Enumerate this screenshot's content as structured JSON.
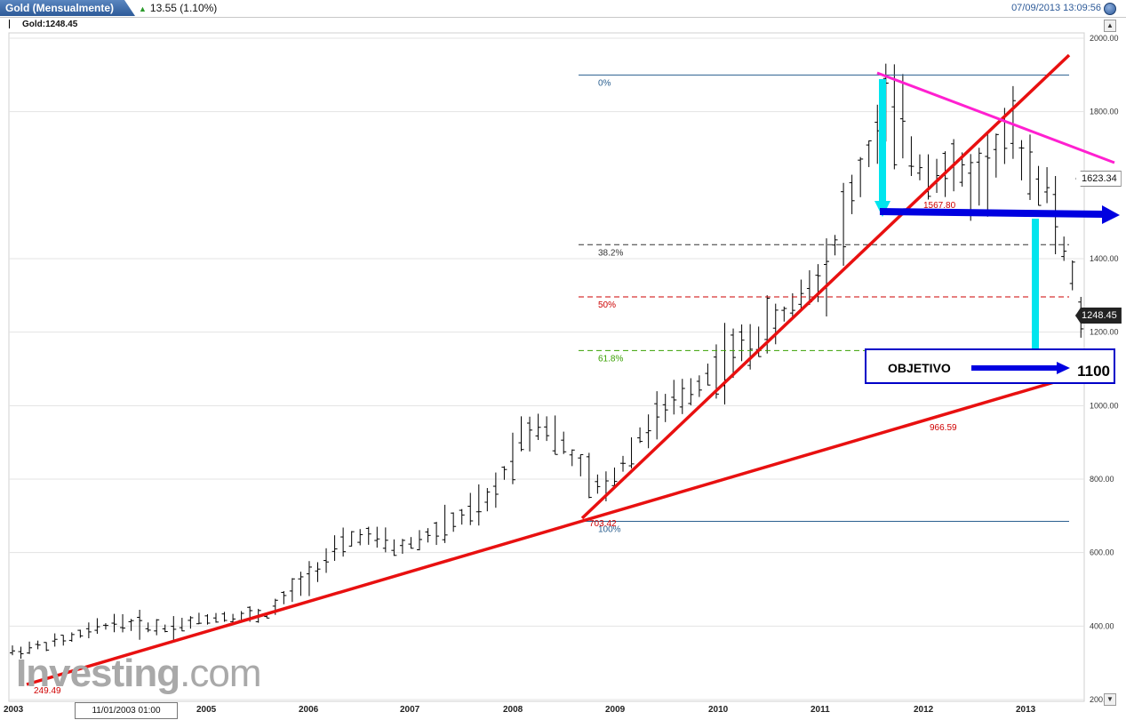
{
  "header": {
    "title": "Gold (Mensualmente)",
    "change": "13.55 (1.10%)",
    "timestamp": "07/09/2013 13:09:56",
    "legend": "Gold:1248.45"
  },
  "cursor_date": "11/01/2003 01:00",
  "watermark": {
    "bold": "Investing",
    "light": ".com"
  },
  "objective": {
    "label": "OBJETIVO",
    "value": "1100"
  },
  "price_flags": {
    "resistance": "1623.34",
    "last": "1248.45"
  },
  "colors": {
    "support_lines": "#e81010",
    "resistance_line": "#ff20d0",
    "arrows_cyan": "#00e5ee",
    "arrow_blue": "#0000e0",
    "fib_0": "#2a5f8f",
    "fib_382": "#333333",
    "fib_50": "#cc0000",
    "fib_618": "#39a000"
  },
  "chart_data": {
    "type": "ohlc",
    "title": "Gold (Mensualmente)",
    "frequency": "monthly",
    "x_axis": {
      "ticks": [
        "2003",
        "2005",
        "2006",
        "2007",
        "2008",
        "2009",
        "2010",
        "2011",
        "2012",
        "2013"
      ]
    },
    "y_axis": {
      "ticks": [
        "200.00",
        "400.00",
        "600.00",
        "800.00",
        "1000.00",
        "1200.00",
        "1400.00",
        "1800.00",
        "2000.00"
      ],
      "ylim": [
        200,
        2000
      ],
      "grid": true,
      "position": "right"
    },
    "last_price": 1248.45,
    "key_points": [
      {
        "label": "249.49",
        "date": "2003",
        "value": 249.49
      },
      {
        "label": "703.42",
        "date": "2008-10",
        "value": 703.42
      },
      {
        "label": "1567.80",
        "date": "2011-09",
        "value": 1567.8
      },
      {
        "label": "966.59",
        "date": "2012",
        "value": 966.59
      }
    ],
    "fibonacci": [
      {
        "label": "0%",
        "value": 1900
      },
      {
        "label": "38.2%",
        "value": 1438
      },
      {
        "label": "50%",
        "value": 1296
      },
      {
        "label": "61.8%",
        "value": 1150
      },
      {
        "label": "100%",
        "value": 685
      }
    ],
    "annual_path": [
      {
        "date": 2003.0,
        "value": 330
      },
      {
        "date": 2003.5,
        "value": 360
      },
      {
        "date": 2004.0,
        "value": 410
      },
      {
        "date": 2004.5,
        "value": 395
      },
      {
        "date": 2005.0,
        "value": 425
      },
      {
        "date": 2005.5,
        "value": 430
      },
      {
        "date": 2006.0,
        "value": 560
      },
      {
        "date": 2006.4,
        "value": 650
      },
      {
        "date": 2006.8,
        "value": 610
      },
      {
        "date": 2007.2,
        "value": 660
      },
      {
        "date": 2007.7,
        "value": 740
      },
      {
        "date": 2008.0,
        "value": 920
      },
      {
        "date": 2008.2,
        "value": 960
      },
      {
        "date": 2008.8,
        "value": 760
      },
      {
        "date": 2009.2,
        "value": 930
      },
      {
        "date": 2009.9,
        "value": 1100
      },
      {
        "date": 2010.5,
        "value": 1220
      },
      {
        "date": 2011.0,
        "value": 1380
      },
      {
        "date": 2011.6,
        "value": 1820
      },
      {
        "date": 2011.9,
        "value": 1650
      },
      {
        "date": 2012.5,
        "value": 1620
      },
      {
        "date": 2012.8,
        "value": 1740
      },
      {
        "date": 2013.2,
        "value": 1570
      },
      {
        "date": 2013.5,
        "value": 1248
      }
    ]
  }
}
